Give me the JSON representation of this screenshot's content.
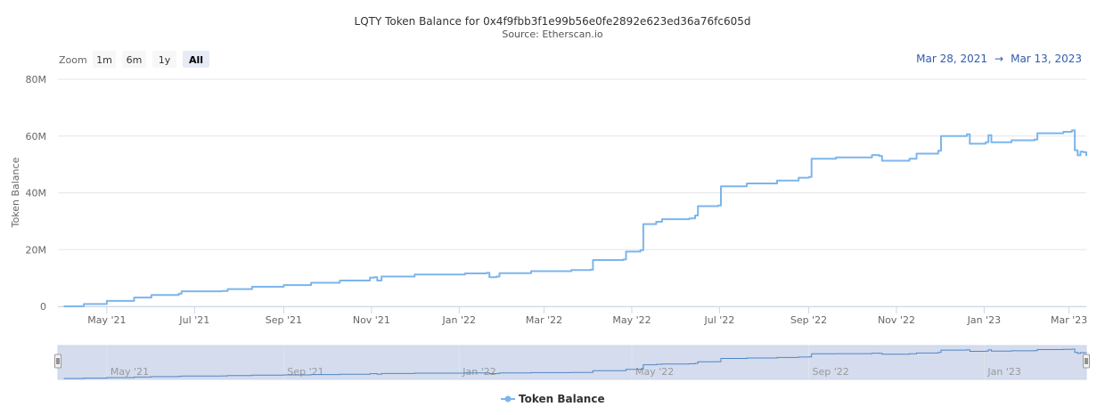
{
  "chart_data": {
    "type": "line",
    "title": "LQTY Token Balance for 0x4f9fbb3f1e99b56e0fe2892e623ed36a76fc605d",
    "subtitle": "Source: Etherscan.io",
    "ylabel": "Token Balance",
    "ylim": [
      0,
      80000000
    ],
    "y_ticks": [
      "0",
      "20M",
      "40M",
      "60M",
      "80M"
    ],
    "xlim": [
      "2021-03-28",
      "2023-03-13"
    ],
    "x_ticks": [
      {
        "label": "May '21",
        "date": "2021-05-01"
      },
      {
        "label": "Jul '21",
        "date": "2021-07-01"
      },
      {
        "label": "Sep '21",
        "date": "2021-09-01"
      },
      {
        "label": "Nov '21",
        "date": "2021-11-01"
      },
      {
        "label": "Jan '22",
        "date": "2022-01-01"
      },
      {
        "label": "Mar '22",
        "date": "2022-03-01"
      },
      {
        "label": "May '22",
        "date": "2022-05-01"
      },
      {
        "label": "Jul '22",
        "date": "2022-07-01"
      },
      {
        "label": "Sep '22",
        "date": "2022-09-01"
      },
      {
        "label": "Nov '22",
        "date": "2022-11-01"
      },
      {
        "label": "Jan '23",
        "date": "2023-01-01"
      },
      {
        "label": "Mar '23",
        "date": "2023-03-01"
      }
    ],
    "navigator_ticks": [
      {
        "label": "May '21",
        "date": "2021-05-01"
      },
      {
        "label": "Sep '21",
        "date": "2021-09-01"
      },
      {
        "label": "Jan '22",
        "date": "2022-01-01"
      },
      {
        "label": "May '22",
        "date": "2022-05-01"
      },
      {
        "label": "Sep '22",
        "date": "2022-09-01"
      },
      {
        "label": "Jan '23",
        "date": "2023-01-01"
      }
    ],
    "grid": true,
    "legend_position": "bottom-center",
    "series": [
      {
        "name": "Token Balance",
        "color": "#7cb5ec",
        "points": [
          [
            "2021-04-01",
            0
          ],
          [
            "2021-04-15",
            800000
          ],
          [
            "2021-05-01",
            1900000
          ],
          [
            "2021-05-20",
            3100000
          ],
          [
            "2021-06-01",
            4000000
          ],
          [
            "2021-06-20",
            4500000
          ],
          [
            "2021-06-22",
            5300000
          ],
          [
            "2021-07-20",
            5400000
          ],
          [
            "2021-07-24",
            6100000
          ],
          [
            "2021-08-10",
            6900000
          ],
          [
            "2021-09-01",
            7500000
          ],
          [
            "2021-09-20",
            8300000
          ],
          [
            "2021-10-10",
            9100000
          ],
          [
            "2021-10-31",
            10100000
          ],
          [
            "2021-11-03",
            10300000
          ],
          [
            "2021-11-05",
            9100000
          ],
          [
            "2021-11-08",
            10500000
          ],
          [
            "2021-12-01",
            11200000
          ],
          [
            "2022-01-05",
            11600000
          ],
          [
            "2022-01-20",
            11800000
          ],
          [
            "2022-01-22",
            10300000
          ],
          [
            "2022-01-27",
            10500000
          ],
          [
            "2022-01-29",
            11700000
          ],
          [
            "2022-02-20",
            12400000
          ],
          [
            "2022-03-20",
            12800000
          ],
          [
            "2022-04-02",
            12900000
          ],
          [
            "2022-04-04",
            16300000
          ],
          [
            "2022-04-25",
            16500000
          ],
          [
            "2022-04-27",
            19300000
          ],
          [
            "2022-05-07",
            19800000
          ],
          [
            "2022-05-09",
            29000000
          ],
          [
            "2022-05-18",
            29800000
          ],
          [
            "2022-05-22",
            30700000
          ],
          [
            "2022-06-10",
            31000000
          ],
          [
            "2022-06-14",
            32000000
          ],
          [
            "2022-06-16",
            35300000
          ],
          [
            "2022-06-30",
            35500000
          ],
          [
            "2022-07-02",
            42300000
          ],
          [
            "2022-07-20",
            43300000
          ],
          [
            "2022-08-10",
            44300000
          ],
          [
            "2022-08-25",
            45300000
          ],
          [
            "2022-09-01",
            45600000
          ],
          [
            "2022-09-03",
            52000000
          ],
          [
            "2022-09-20",
            52500000
          ],
          [
            "2022-10-15",
            53300000
          ],
          [
            "2022-10-20",
            53000000
          ],
          [
            "2022-10-22",
            51300000
          ],
          [
            "2022-11-10",
            52000000
          ],
          [
            "2022-11-15",
            53800000
          ],
          [
            "2022-11-30",
            54800000
          ],
          [
            "2022-12-02",
            60000000
          ],
          [
            "2022-12-20",
            60600000
          ],
          [
            "2022-12-22",
            57300000
          ],
          [
            "2023-01-02",
            57800000
          ],
          [
            "2023-01-04",
            60300000
          ],
          [
            "2023-01-06",
            57800000
          ],
          [
            "2023-01-20",
            58500000
          ],
          [
            "2023-02-05",
            58800000
          ],
          [
            "2023-02-07",
            61000000
          ],
          [
            "2023-02-25",
            61500000
          ],
          [
            "2023-03-03",
            62000000
          ],
          [
            "2023-03-05",
            55000000
          ],
          [
            "2023-03-07",
            53200000
          ],
          [
            "2023-03-09",
            54500000
          ],
          [
            "2023-03-11",
            54300000
          ],
          [
            "2023-03-13",
            53000000
          ]
        ]
      }
    ]
  },
  "zoom": {
    "label": "Zoom",
    "buttons": [
      {
        "id": "1m",
        "label": "1m",
        "active": false
      },
      {
        "id": "6m",
        "label": "6m",
        "active": false
      },
      {
        "id": "1y",
        "label": "1y",
        "active": false
      },
      {
        "id": "all",
        "label": "All",
        "active": true
      }
    ]
  },
  "range": {
    "from": "Mar 28, 2021",
    "arrow": "→",
    "to": "Mar 13, 2023"
  },
  "legend": {
    "label": "Token Balance"
  }
}
